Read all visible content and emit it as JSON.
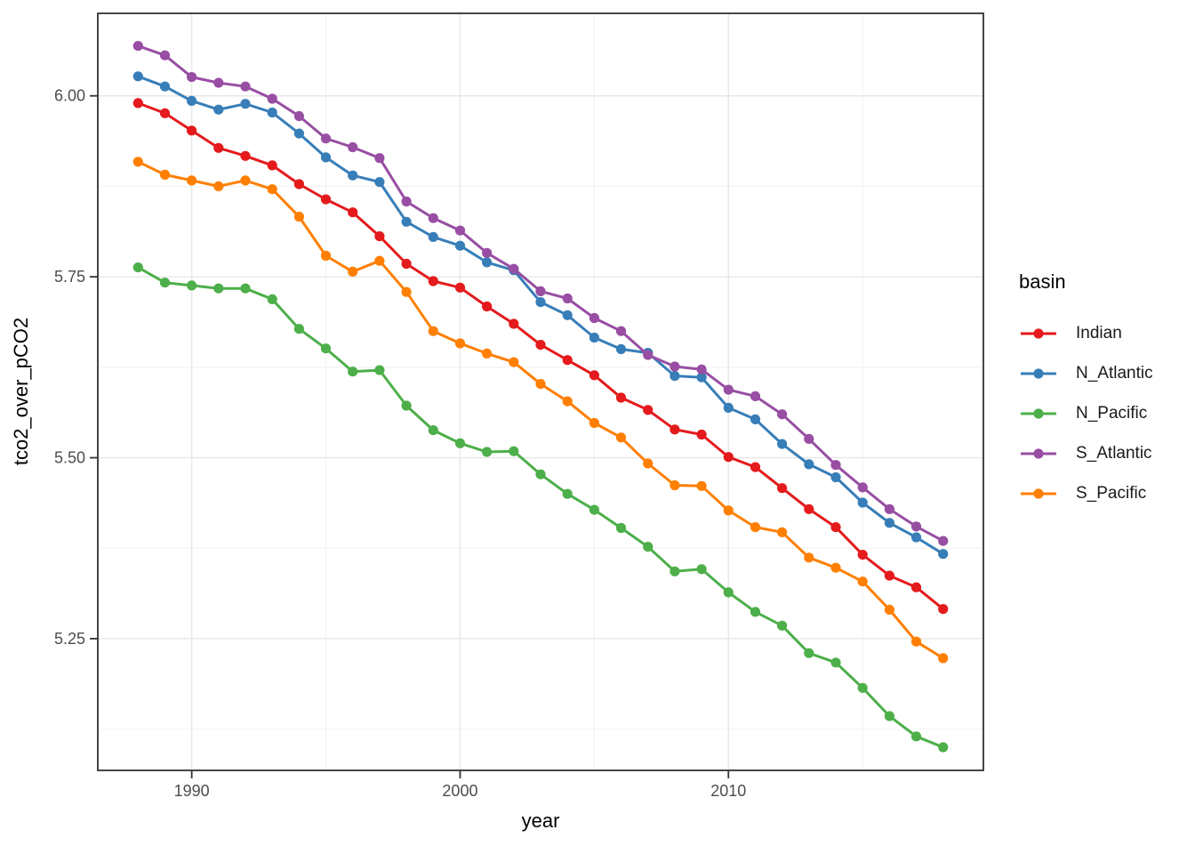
{
  "chart_data": {
    "type": "line",
    "title": "",
    "xlabel": "year",
    "ylabel": "tco2_over_pCO2",
    "legend": {
      "title": "basin",
      "position": "right"
    },
    "grid": true,
    "xlim": [
      1986.5,
      2019.5
    ],
    "ylim": [
      5.068,
      6.114
    ],
    "x_ticks": [
      1990,
      2000,
      2010
    ],
    "x_tick_labels": [
      "1990",
      "2000",
      "2010"
    ],
    "x_minor_ticks": [
      1995,
      2005,
      2015
    ],
    "y_ticks": [
      6.0,
      5.75,
      5.5,
      5.25
    ],
    "y_tick_labels": [
      "6.00",
      "5.75",
      "5.50",
      "5.25"
    ],
    "y_minor_ticks": [
      5.875,
      5.625,
      5.375,
      5.125
    ],
    "x": [
      1988,
      1989,
      1990,
      1991,
      1992,
      1993,
      1994,
      1995,
      1996,
      1997,
      1998,
      1999,
      2000,
      2001,
      2002,
      2003,
      2004,
      2005,
      2006,
      2007,
      2008,
      2009,
      2010,
      2011,
      2012,
      2013,
      2014,
      2015,
      2016,
      2017,
      2018
    ],
    "series": [
      {
        "name": "Indian",
        "color": "#E41A1C",
        "values": [
          5.99,
          5.976,
          5.952,
          5.928,
          5.917,
          5.904,
          5.878,
          5.857,
          5.839,
          5.806,
          5.768,
          5.744,
          5.735,
          5.709,
          5.685,
          5.656,
          5.635,
          5.614,
          5.583,
          5.566,
          5.539,
          5.532,
          5.501,
          5.487,
          5.458,
          5.429,
          5.404,
          5.366,
          5.337,
          5.321,
          5.291
        ]
      },
      {
        "name": "N_Atlantic",
        "color": "#377EB8",
        "values": [
          6.027,
          6.013,
          5.993,
          5.981,
          5.989,
          5.977,
          5.948,
          5.915,
          5.89,
          5.881,
          5.826,
          5.805,
          5.793,
          5.77,
          5.759,
          5.715,
          5.697,
          5.666,
          5.65,
          5.645,
          5.613,
          5.611,
          5.569,
          5.553,
          5.519,
          5.491,
          5.473,
          5.438,
          5.41,
          5.39,
          5.367
        ]
      },
      {
        "name": "N_Pacific",
        "color": "#4DAF4A",
        "values": [
          5.763,
          5.742,
          5.738,
          5.734,
          5.734,
          5.719,
          5.678,
          5.651,
          5.619,
          5.621,
          5.572,
          5.538,
          5.52,
          5.508,
          5.509,
          5.477,
          5.45,
          5.428,
          5.403,
          5.377,
          5.343,
          5.346,
          5.314,
          5.287,
          5.268,
          5.23,
          5.217,
          5.182,
          5.143,
          5.115,
          5.1
        ]
      },
      {
        "name": "S_Atlantic",
        "color": "#984EA3",
        "values": [
          6.069,
          6.056,
          6.026,
          6.018,
          6.013,
          5.996,
          5.972,
          5.941,
          5.929,
          5.914,
          5.854,
          5.831,
          5.814,
          5.783,
          5.761,
          5.73,
          5.72,
          5.693,
          5.675,
          5.642,
          5.626,
          5.622,
          5.594,
          5.585,
          5.56,
          5.526,
          5.49,
          5.459,
          5.429,
          5.405,
          5.385
        ]
      },
      {
        "name": "S_Pacific",
        "color": "#FF7F00",
        "values": [
          5.909,
          5.891,
          5.883,
          5.875,
          5.883,
          5.871,
          5.833,
          5.779,
          5.757,
          5.772,
          5.729,
          5.675,
          5.658,
          5.644,
          5.632,
          5.602,
          5.578,
          5.548,
          5.528,
          5.492,
          5.462,
          5.461,
          5.427,
          5.404,
          5.397,
          5.362,
          5.348,
          5.329,
          5.29,
          5.246,
          5.223
        ]
      }
    ]
  }
}
